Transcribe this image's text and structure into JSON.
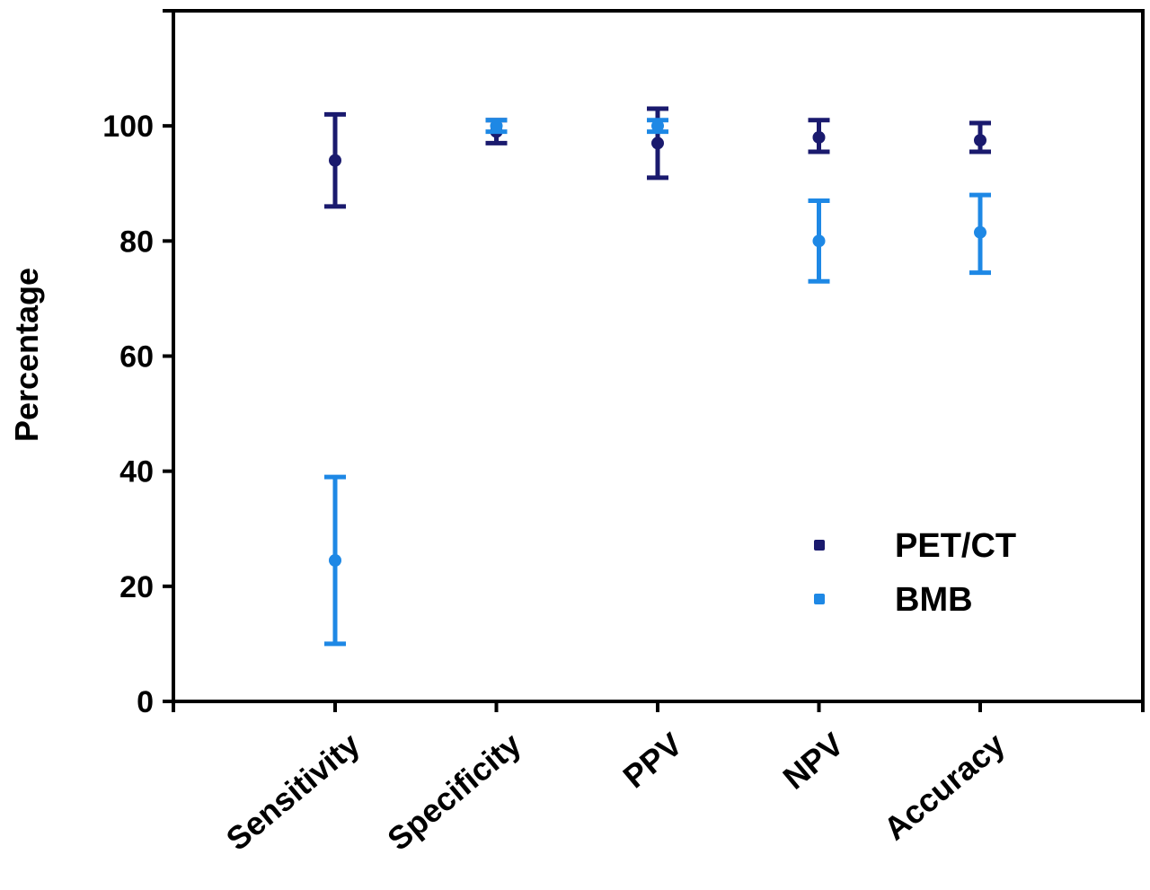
{
  "chart_data": {
    "type": "scatter",
    "title": "",
    "xlabel": "",
    "ylabel": "Percentage",
    "ylim": [
      0,
      120
    ],
    "yticks": [
      0,
      20,
      40,
      60,
      80,
      100
    ],
    "grid": false,
    "legend_position": "bottom-right",
    "categories": [
      "Sensitivity",
      "Specificity",
      "PPV",
      "NPV",
      "Accuracy"
    ],
    "series": [
      {
        "name": "PET/CT",
        "color": "#1a1a6e",
        "values": [
          94,
          99,
          97,
          98,
          97.5
        ],
        "error_low": [
          86,
          97,
          91,
          95.5,
          95.5
        ],
        "error_high": [
          102,
          101,
          103,
          101,
          100.5
        ]
      },
      {
        "name": "BMB",
        "color": "#1e88e5",
        "values": [
          24.5,
          100,
          100,
          80,
          81.5
        ],
        "error_low": [
          10,
          99,
          99,
          73,
          74.5
        ],
        "error_high": [
          39,
          101,
          101,
          87,
          88
        ]
      }
    ]
  }
}
